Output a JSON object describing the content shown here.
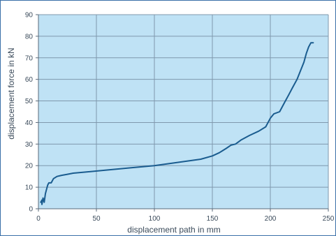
{
  "chart_data": {
    "type": "line",
    "title": "",
    "xlabel": "displacement path in mm",
    "ylabel": "displacement force in kN",
    "xlim": [
      0,
      250
    ],
    "ylim": [
      0,
      90
    ],
    "x_ticks": [
      "0",
      "50",
      "100",
      "150",
      "200",
      "250"
    ],
    "y_ticks": [
      "0",
      "10",
      "20",
      "30",
      "40",
      "50",
      "60",
      "70",
      "80",
      "90"
    ],
    "grid": true,
    "legend": "none",
    "colors": {
      "plot_bg": "#bfe2f5",
      "line": "#1a5c8f",
      "grid": "#7f98ad",
      "axis": "#5a6a7a"
    },
    "series": [
      {
        "values": [
          [
            2,
            3
          ],
          [
            3,
            4
          ],
          [
            3,
            2
          ],
          [
            4,
            5
          ],
          [
            5,
            3
          ],
          [
            6,
            7
          ],
          [
            7,
            9
          ],
          [
            8,
            11
          ],
          [
            9,
            12
          ],
          [
            11,
            12
          ],
          [
            13,
            14
          ],
          [
            16,
            15
          ],
          [
            20,
            15.5
          ],
          [
            25,
            16
          ],
          [
            30,
            16.5
          ],
          [
            40,
            17
          ],
          [
            60,
            18
          ],
          [
            80,
            19
          ],
          [
            100,
            20
          ],
          [
            120,
            21.5
          ],
          [
            140,
            23
          ],
          [
            150,
            24.5
          ],
          [
            156,
            26
          ],
          [
            159,
            27
          ],
          [
            162,
            28
          ],
          [
            166,
            29.5
          ],
          [
            170,
            30
          ],
          [
            175,
            32
          ],
          [
            182,
            34
          ],
          [
            190,
            36
          ],
          [
            196,
            38
          ],
          [
            200,
            42
          ],
          [
            203,
            44
          ],
          [
            208,
            45
          ],
          [
            212,
            49
          ],
          [
            216,
            53
          ],
          [
            219,
            56
          ],
          [
            223,
            60
          ],
          [
            226,
            64
          ],
          [
            229,
            68
          ],
          [
            231,
            72
          ],
          [
            233,
            75
          ],
          [
            235,
            77
          ],
          [
            237,
            77
          ]
        ]
      }
    ]
  }
}
